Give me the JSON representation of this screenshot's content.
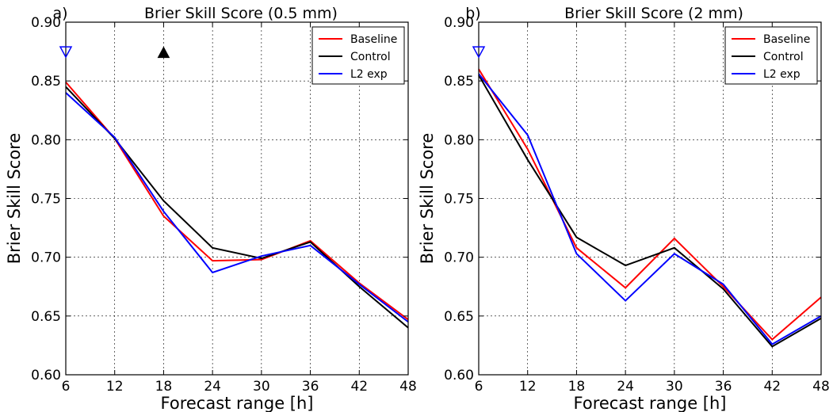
{
  "chart_data": [
    {
      "type": "line",
      "panel_label": "a)",
      "title": "Brier Skill Score (0.5 mm)",
      "xlabel": "Forecast range [h]",
      "ylabel": "Brier Skill Score",
      "x": [
        6,
        12,
        18,
        24,
        30,
        36,
        42,
        48
      ],
      "xlim": [
        6,
        48
      ],
      "ylim": [
        0.6,
        0.9
      ],
      "xticks": [
        "6",
        "12",
        "18",
        "24",
        "30",
        "36",
        "42",
        "48"
      ],
      "yticks": [
        "0.60",
        "0.65",
        "0.70",
        "0.75",
        "0.80",
        "0.85",
        "0.90"
      ],
      "grid": true,
      "legend_position": "top-right",
      "series": [
        {
          "name": "Baseline",
          "color": "#ff0000",
          "values": [
            0.849,
            0.801,
            0.735,
            0.697,
            0.698,
            0.714,
            0.678,
            0.647
          ]
        },
        {
          "name": "Control",
          "color": "#000000",
          "values": [
            0.845,
            0.801,
            0.748,
            0.708,
            0.699,
            0.713,
            0.675,
            0.64
          ]
        },
        {
          "name": "L2 exp",
          "color": "#0000ff",
          "values": [
            0.84,
            0.802,
            0.739,
            0.687,
            0.701,
            0.71,
            0.677,
            0.645
          ]
        }
      ],
      "markers": [
        {
          "shape": "triangle-down-open",
          "color": "#0000ff",
          "x": 6,
          "y": 0.875
        },
        {
          "shape": "triangle-up-filled",
          "color": "#000000",
          "x": 18,
          "y": 0.874
        }
      ]
    },
    {
      "type": "line",
      "panel_label": "b)",
      "title": "Brier Skill Score (2 mm)",
      "xlabel": "Forecast range [h]",
      "ylabel": "Brier Skill Score",
      "x": [
        6,
        12,
        18,
        24,
        30,
        36,
        42,
        48
      ],
      "xlim": [
        6,
        48
      ],
      "ylim": [
        0.6,
        0.9
      ],
      "xticks": [
        "6",
        "12",
        "18",
        "24",
        "30",
        "36",
        "42",
        "48"
      ],
      "yticks": [
        "0.60",
        "0.65",
        "0.70",
        "0.75",
        "0.80",
        "0.85",
        "0.90"
      ],
      "grid": true,
      "legend_position": "top-right",
      "series": [
        {
          "name": "Baseline",
          "color": "#ff0000",
          "values": [
            0.86,
            0.792,
            0.708,
            0.674,
            0.716,
            0.675,
            0.63,
            0.666
          ]
        },
        {
          "name": "Control",
          "color": "#000000",
          "values": [
            0.855,
            0.783,
            0.717,
            0.693,
            0.708,
            0.673,
            0.624,
            0.648
          ]
        },
        {
          "name": "L2 exp",
          "color": "#0000ff",
          "values": [
            0.856,
            0.804,
            0.703,
            0.663,
            0.703,
            0.677,
            0.626,
            0.65
          ]
        }
      ],
      "markers": [
        {
          "shape": "triangle-down-open",
          "color": "#0000ff",
          "x": 6,
          "y": 0.875
        }
      ]
    }
  ]
}
